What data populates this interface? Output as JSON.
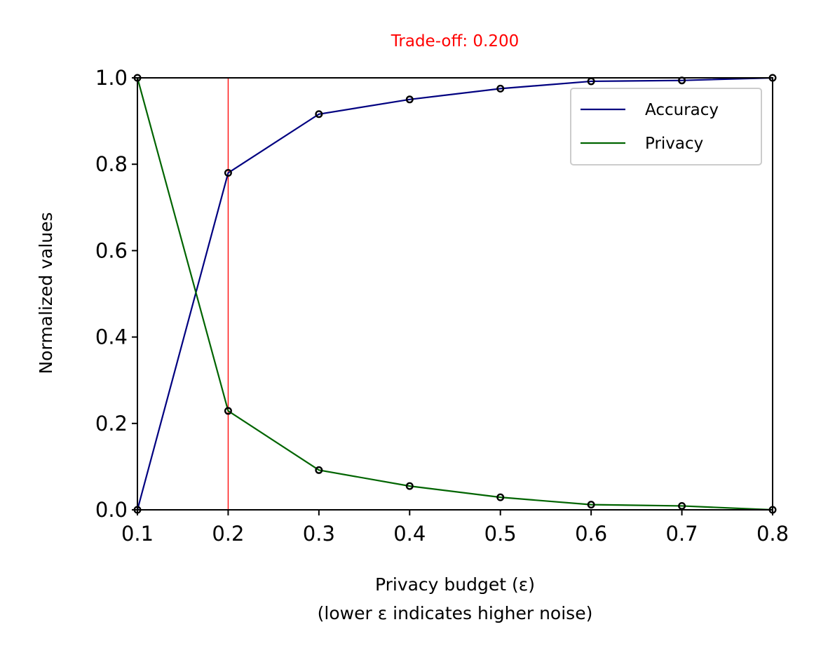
{
  "chart_data": {
    "type": "line",
    "title": "Trade-off: 0.200",
    "title_color": "#ff0000",
    "xlabel_line1": "Privacy budget (ε)",
    "xlabel_line2": "(lower ε indicates higher noise)",
    "ylabel": "Normalized values",
    "xlim": [
      0.1,
      0.8
    ],
    "ylim": [
      0.0,
      1.0
    ],
    "x_ticks": [
      "0.1",
      "0.2",
      "0.3",
      "0.4",
      "0.5",
      "0.6",
      "0.7",
      "0.8"
    ],
    "y_ticks": [
      "0.0",
      "0.2",
      "0.4",
      "0.6",
      "0.8",
      "1.0"
    ],
    "x": [
      0.1,
      0.2,
      0.3,
      0.4,
      0.5,
      0.6,
      0.7,
      0.8
    ],
    "series": [
      {
        "name": "Accuracy",
        "color": "#000080",
        "values": [
          0.0,
          0.78,
          0.916,
          0.95,
          0.975,
          0.992,
          0.994,
          1.0
        ]
      },
      {
        "name": "Privacy",
        "color": "#006400",
        "values": [
          1.0,
          0.229,
          0.092,
          0.055,
          0.029,
          0.012,
          0.009,
          0.0
        ]
      }
    ],
    "vline": {
      "x": 0.2,
      "color": "#ff0000"
    },
    "legend_position": "upper-right",
    "grid": false
  }
}
